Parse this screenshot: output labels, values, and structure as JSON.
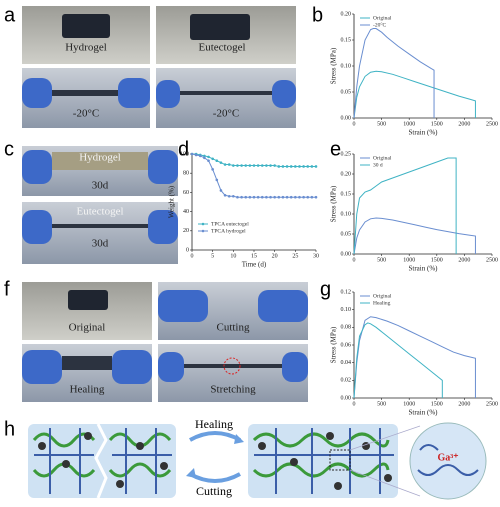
{
  "panel_letters": [
    "a",
    "b",
    "c",
    "d",
    "e",
    "f",
    "g",
    "h"
  ],
  "photos": {
    "a": [
      "Hydrogel",
      "Eutectogel",
      "-20°C",
      "-20°C"
    ],
    "c": [
      "Hydrogel",
      "30d",
      "Eutectogel",
      "30d"
    ],
    "f": [
      "Original",
      "Cutting",
      "Healing",
      "Stretching"
    ]
  },
  "diagram": {
    "top_arrow": "Healing",
    "bottom_arrow": "Cutting",
    "ion": "Ga³⁺"
  },
  "chart_data": [
    {
      "type": "line",
      "xlabel": "Strain (%)",
      "ylabel": "Stress (MPa)",
      "legend": "upper left",
      "xlim": [
        0,
        2500
      ],
      "xticks": [
        0,
        500,
        1000,
        1500,
        2000,
        2500
      ],
      "ylim": [
        0,
        0.2
      ],
      "yticks": [
        {
          "value": 0,
          "label": "0.00"
        },
        {
          "value": 0.05,
          "label": "0.05"
        },
        {
          "value": 0.1,
          "label": "0.10"
        },
        {
          "value": 0.15,
          "label": "0.15"
        },
        {
          "value": 0.2,
          "label": "0.20"
        }
      ],
      "series": [
        {
          "name": "Original",
          "color": "#3fb3c4",
          "x": [
            0,
            50,
            100,
            200,
            300,
            400,
            500,
            700,
            900,
            1100,
            1300,
            1500,
            1700,
            1900,
            2100,
            2200,
            2200
          ],
          "values": [
            0,
            0.04,
            0.06,
            0.08,
            0.088,
            0.09,
            0.089,
            0.084,
            0.077,
            0.07,
            0.063,
            0.056,
            0.049,
            0.042,
            0.036,
            0.033,
            0
          ]
        },
        {
          "name": "-20°C",
          "color": "#6a8ed0",
          "x": [
            0,
            50,
            100,
            200,
            300,
            350,
            400,
            500,
            600,
            800,
            1000,
            1200,
            1400,
            1450,
            1450
          ],
          "values": [
            0,
            0.06,
            0.1,
            0.15,
            0.17,
            0.172,
            0.172,
            0.165,
            0.155,
            0.138,
            0.123,
            0.108,
            0.095,
            0.092,
            0
          ]
        }
      ]
    },
    {
      "type": "line",
      "xlabel": "Time (d)",
      "ylabel": "Weight (%)",
      "legend": "lower left",
      "markers": true,
      "xlim": [
        0,
        30
      ],
      "xticks": [
        0,
        5,
        10,
        15,
        20,
        25,
        30
      ],
      "ylim": [
        0,
        100
      ],
      "yticks": [
        0,
        20,
        40,
        60,
        80,
        100
      ],
      "series": [
        {
          "name": "TPCA eutectogel",
          "color": "#3fb3c4",
          "x": [
            0,
            1,
            2,
            3,
            4,
            5,
            6,
            7,
            8,
            9,
            10,
            11,
            12,
            13,
            14,
            15,
            16,
            17,
            18,
            19,
            20,
            21,
            22,
            23,
            24,
            25,
            26,
            27,
            28,
            29,
            30
          ],
          "values": [
            100,
            100,
            99,
            98,
            97,
            95,
            93,
            91,
            89,
            89,
            88,
            88,
            88,
            88,
            88,
            88,
            88,
            88,
            88,
            88,
            88,
            87,
            87,
            87,
            87,
            87,
            87,
            87,
            87,
            87,
            87
          ]
        },
        {
          "name": "TPCA hydrogel",
          "color": "#6a8ed0",
          "x": [
            0,
            1,
            2,
            3,
            4,
            5,
            6,
            7,
            8,
            9,
            10,
            11,
            12,
            13,
            14,
            15,
            16,
            17,
            18,
            19,
            20,
            21,
            22,
            23,
            24,
            25,
            26,
            27,
            28,
            29,
            30
          ],
          "values": [
            100,
            99,
            98,
            96,
            93,
            84,
            73,
            62,
            57,
            56,
            56,
            55,
            55,
            55,
            55,
            55,
            55,
            55,
            55,
            55,
            55,
            55,
            55,
            55,
            55,
            55,
            55,
            55,
            55,
            55,
            55
          ]
        }
      ]
    },
    {
      "type": "line",
      "xlabel": "Strain (%)",
      "ylabel": "Stress (MPa)",
      "legend": "upper left",
      "xlim": [
        0,
        2500
      ],
      "xticks": [
        0,
        500,
        1000,
        1500,
        2000,
        2500
      ],
      "ylim": [
        0,
        0.25
      ],
      "yticks": [
        {
          "value": 0,
          "label": "0.00"
        },
        {
          "value": 0.05,
          "label": "0.05"
        },
        {
          "value": 0.1,
          "label": "0.10"
        },
        {
          "value": 0.15,
          "label": "0.15"
        },
        {
          "value": 0.2,
          "label": "0.20"
        },
        {
          "value": 0.25,
          "label": "0.25"
        }
      ],
      "series": [
        {
          "name": "Original",
          "color": "#6a8ed0",
          "x": [
            0,
            50,
            100,
            200,
            300,
            400,
            500,
            700,
            900,
            1100,
            1300,
            1500,
            1700,
            1900,
            2100,
            2200,
            2200
          ],
          "values": [
            0,
            0.04,
            0.06,
            0.08,
            0.088,
            0.09,
            0.089,
            0.085,
            0.079,
            0.073,
            0.067,
            0.061,
            0.056,
            0.051,
            0.047,
            0.045,
            0
          ]
        },
        {
          "name": "30 d",
          "color": "#3fb3c4",
          "x": [
            0,
            50,
            100,
            200,
            300,
            400,
            500,
            700,
            900,
            1100,
            1300,
            1500,
            1700,
            1800,
            1850,
            1850
          ],
          "values": [
            0,
            0.1,
            0.14,
            0.155,
            0.16,
            0.17,
            0.18,
            0.19,
            0.2,
            0.21,
            0.22,
            0.23,
            0.24,
            0.24,
            0.24,
            0
          ]
        }
      ]
    },
    {
      "type": "line",
      "xlabel": "Strain (%)",
      "ylabel": "Stress (MPa)",
      "legend": "upper left",
      "xlim": [
        0,
        2500
      ],
      "xticks": [
        0,
        500,
        1000,
        1500,
        2000,
        2500
      ],
      "ylim": [
        0,
        0.12
      ],
      "yticks": [
        {
          "value": 0,
          "label": "0.00"
        },
        {
          "value": 0.02,
          "label": "0.02"
        },
        {
          "value": 0.04,
          "label": "0.04"
        },
        {
          "value": 0.06,
          "label": "0.06"
        },
        {
          "value": 0.08,
          "label": "0.08"
        },
        {
          "value": 0.1,
          "label": "0.10"
        },
        {
          "value": 0.12,
          "label": "0.12"
        }
      ],
      "series": [
        {
          "name": "Original",
          "color": "#6a8ed0",
          "x": [
            0,
            50,
            100,
            200,
            300,
            400,
            600,
            800,
            1000,
            1200,
            1400,
            1600,
            1800,
            2000,
            2200,
            2200
          ],
          "values": [
            0,
            0.04,
            0.065,
            0.088,
            0.092,
            0.091,
            0.087,
            0.082,
            0.076,
            0.07,
            0.064,
            0.058,
            0.052,
            0.048,
            0.045,
            0
          ]
        },
        {
          "name": "Healing",
          "color": "#3fb3c4",
          "x": [
            0,
            50,
            100,
            200,
            250,
            300,
            400,
            600,
            800,
            1000,
            1200,
            1400,
            1600,
            1600
          ],
          "values": [
            0,
            0.045,
            0.07,
            0.083,
            0.085,
            0.084,
            0.08,
            0.07,
            0.06,
            0.05,
            0.04,
            0.03,
            0.02,
            0
          ]
        }
      ]
    }
  ]
}
